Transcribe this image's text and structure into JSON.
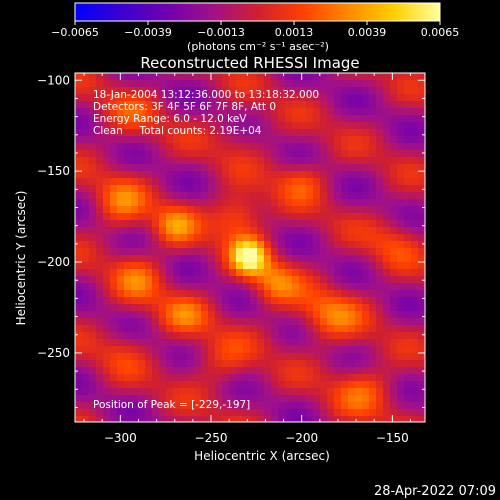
{
  "chart_data": {
    "type": "heatmap",
    "title": "Reconstructed RHESSI Image",
    "xlabel": "Heliocentric X (arcsec)",
    "ylabel": "Heliocentric Y (arcsec)",
    "xlim": [
      -325,
      -132
    ],
    "ylim": [
      -288,
      -96
    ],
    "xticks": [
      -300,
      -250,
      -200,
      -150
    ],
    "xtick_labels": [
      "−300",
      "−250",
      "−200",
      "−150"
    ],
    "yticks": [
      -100,
      -150,
      -200,
      -250
    ],
    "ytick_labels": [
      "−100",
      "−150",
      "−200",
      "−250"
    ],
    "colorbar": {
      "min": -0.0065,
      "max": 0.0065,
      "ticks": [
        -0.0065,
        -0.0039,
        -0.0013,
        0.0013,
        0.0039,
        0.0065
      ],
      "tick_labels": [
        "−0.0065",
        "−0.0039",
        "−0.0013",
        "0.0013",
        "0.0039",
        "0.0065"
      ],
      "unit_label": "(photons cm⁻² s⁻¹ asec⁻²)",
      "colors": [
        "#0000ff",
        "#3a00d0",
        "#7000b0",
        "#a0108a",
        "#d02030",
        "#ff4000",
        "#ff8a00",
        "#ffd000",
        "#ffffa0"
      ]
    },
    "peak": {
      "x": -229,
      "y": -197,
      "value": 0.0065
    },
    "blobs": [
      {
        "x": -229,
        "y": -197,
        "sx": 7,
        "sy": 7,
        "a": 0.0065
      },
      {
        "x": -235,
        "y": -175,
        "sx": 10,
        "sy": 9,
        "a": 0.0038
      },
      {
        "x": -215,
        "y": -212,
        "sx": 9,
        "sy": 9,
        "a": 0.0033
      },
      {
        "x": -270,
        "y": -180,
        "sx": 8,
        "sy": 8,
        "a": 0.0034
      },
      {
        "x": -300,
        "y": -168,
        "sx": 10,
        "sy": 10,
        "a": 0.003
      },
      {
        "x": -290,
        "y": -210,
        "sx": 10,
        "sy": 10,
        "a": 0.0026
      },
      {
        "x": -265,
        "y": -230,
        "sx": 10,
        "sy": 8,
        "a": 0.0026
      },
      {
        "x": -200,
        "y": -155,
        "sx": 10,
        "sy": 8,
        "a": 0.0024
      },
      {
        "x": -185,
        "y": -230,
        "sx": 12,
        "sy": 10,
        "a": 0.0032
      },
      {
        "x": -165,
        "y": -270,
        "sx": 12,
        "sy": 10,
        "a": 0.0026
      },
      {
        "x": -150,
        "y": -190,
        "sx": 10,
        "sy": 10,
        "a": 0.0018
      },
      {
        "x": -245,
        "y": -255,
        "sx": 12,
        "sy": 10,
        "a": 0.002
      },
      {
        "x": -300,
        "y": -250,
        "sx": 10,
        "sy": 10,
        "a": 0.0012
      },
      {
        "x": -295,
        "y": -120,
        "sx": 12,
        "sy": 10,
        "a": 0.0016
      },
      {
        "x": -235,
        "y": -130,
        "sx": 12,
        "sy": 10,
        "a": 0.001
      }
    ]
  },
  "annotations": {
    "date": "18-Jan-2004 13:12:36.000 to 13:18:32.000",
    "detectors": "Detectors: 3F 4F 5F 6F 7F 8F, Att 0",
    "energy": "Energy Range: 6.0 - 12.0 keV",
    "clean": "Clean     Total counts: 2.19E+04",
    "peak_text": "Position of Peak = [-229,-197]"
  },
  "timestamp": "28-Apr-2022 07:09"
}
